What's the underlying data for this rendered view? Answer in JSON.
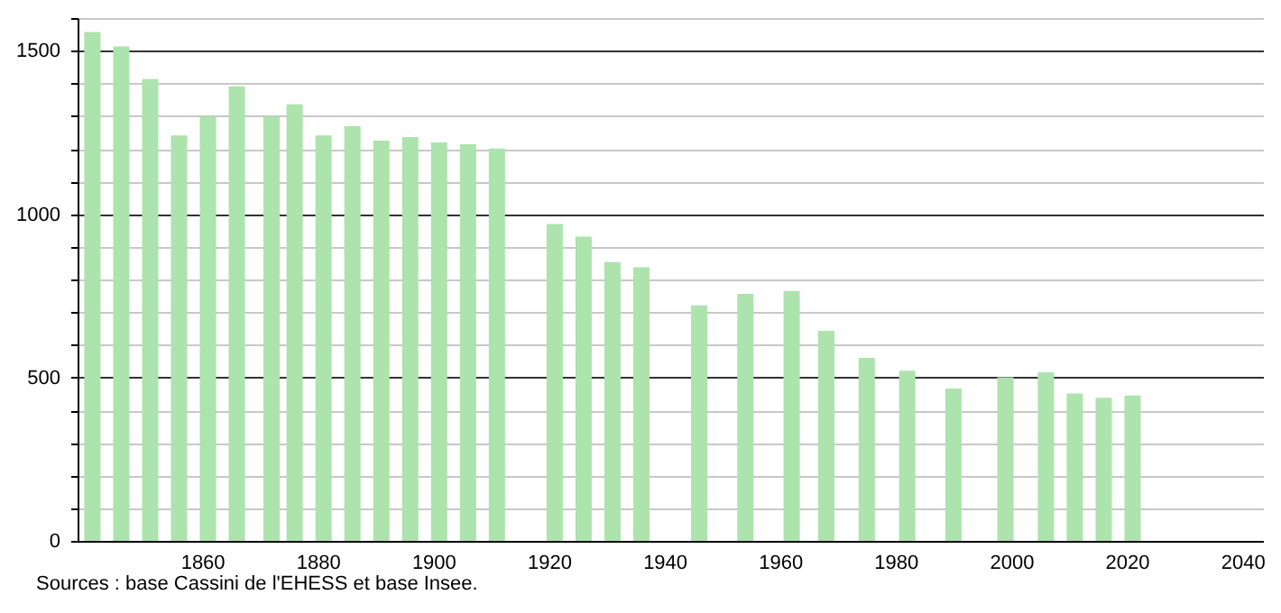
{
  "chart_data": {
    "type": "bar",
    "color": "#ade3ad",
    "x": [
      1841,
      1846,
      1851,
      1856,
      1861,
      1866,
      1872,
      1876,
      1881,
      1886,
      1891,
      1896,
      1901,
      1906,
      1911,
      1921,
      1926,
      1931,
      1936,
      1946,
      1954,
      1962,
      1968,
      1975,
      1982,
      1990,
      1999,
      2006,
      2011,
      2016,
      2021
    ],
    "values": [
      1557,
      1513,
      1413,
      1241,
      1299,
      1391,
      1299,
      1336,
      1241,
      1269,
      1225,
      1236,
      1219,
      1214,
      1201,
      970,
      931,
      853,
      837,
      721,
      756,
      765,
      643,
      560,
      521,
      466,
      501,
      516,
      451,
      438,
      445
    ],
    "xlim": [
      1840,
      2042
    ],
    "xticks": [
      1860,
      1880,
      1900,
      1920,
      1940,
      1960,
      1980,
      2000,
      2020,
      2040
    ],
    "ylim": [
      0,
      1600
    ],
    "yticks": [
      0,
      {
        "value": 100,
        "label": null
      },
      {
        "value": 200,
        "label": null
      },
      {
        "value": 300,
        "label": null
      },
      {
        "value": 400,
        "label": null
      },
      500,
      {
        "value": 600,
        "label": null
      },
      {
        "value": 700,
        "label": null
      },
      {
        "value": 800,
        "label": null
      },
      {
        "value": 900,
        "label": null
      },
      1000,
      {
        "value": 1100,
        "label": null
      },
      {
        "value": 1200,
        "label": null
      },
      {
        "value": 1300,
        "label": null
      },
      {
        "value": 1400,
        "label": null
      },
      1500,
      {
        "value": 1600,
        "label": null
      }
    ],
    "grid": "y",
    "annotations": [
      "Sources : base Cassini de l'EHESS et base Insee."
    ]
  }
}
